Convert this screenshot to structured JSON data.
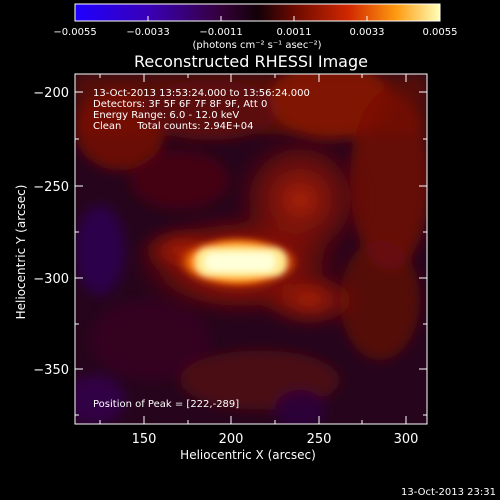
{
  "colorbar": {
    "ticks": [
      "−0.0055",
      "−0.0033",
      "−0.0011",
      "0.0011",
      "0.0033",
      "0.0055"
    ],
    "units": "(photons cm⁻² s⁻¹ asec⁻²)"
  },
  "title": "Reconstructed RHESSI Image",
  "annotations": {
    "time_range": "13-Oct-2013 13:53:24.000 to 13:56:24.000",
    "detectors": "Detectors: 3F 5F 6F 7F 8F 9F, Att 0",
    "energy": "Energy Range: 6.0 - 12.0 keV",
    "clean": "Clean     Total counts: 2.94E+04",
    "peak": "Position of Peak = [222,-289]"
  },
  "axes": {
    "xlabel": "Heliocentric X (arcsec)",
    "ylabel": "Heliocentric Y (arcsec)",
    "xticks": [
      "150",
      "200",
      "250",
      "300"
    ],
    "yticks": [
      "−200",
      "−250",
      "−300",
      "−350"
    ]
  },
  "timestamp": "13-Oct-2013 23:31",
  "colors": {
    "background": "#000000",
    "foreground": "#ffffff"
  }
}
